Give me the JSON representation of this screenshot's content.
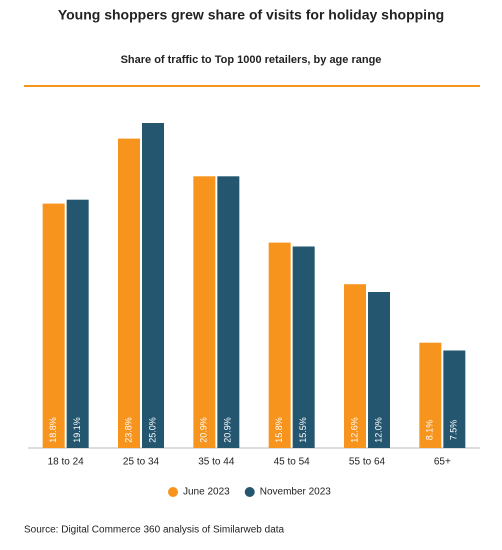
{
  "chart_data": {
    "type": "bar",
    "title": "Young shoppers grew share of visits for holiday shopping",
    "subtitle": "Share of traffic to Top 1000 retailers, by age range",
    "categories": [
      "18 to 24",
      "25 to 34",
      "35 to 44",
      "45 to 54",
      "55 to 64",
      "65+"
    ],
    "series": [
      {
        "name": "June 2023",
        "color": "#f7941d",
        "values": [
          18.8,
          23.8,
          20.9,
          15.8,
          12.6,
          8.1
        ],
        "value_labels": [
          "18.8%",
          "23.8%",
          "20.9%",
          "15.8%",
          "12.6%",
          "8.1%"
        ]
      },
      {
        "name": "November 2023",
        "color": "#245670",
        "values": [
          19.1,
          25.0,
          20.9,
          15.5,
          12.0,
          7.5
        ],
        "value_labels": [
          "19.1%",
          "25.0%",
          "20.9%",
          "15.5%",
          "12.0%",
          "7.5%"
        ]
      }
    ],
    "source": "Source: Digital Commerce 360 analysis of Similarweb data"
  }
}
